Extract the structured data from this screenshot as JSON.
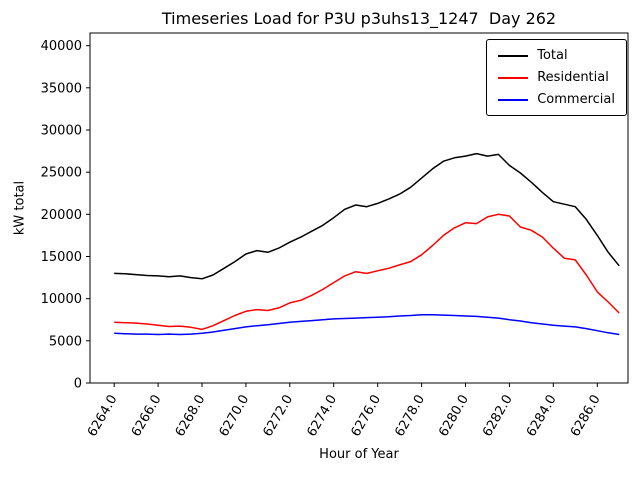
{
  "chart_data": {
    "type": "line",
    "title": "Timeseries Load for P3U p3uhs13_1247  Day 262",
    "xlabel": "Hour of Year",
    "ylabel": "kW total",
    "xlim": [
      6262.9,
      6287.4
    ],
    "ylim": [
      0,
      41500
    ],
    "grid": false,
    "legend_position": "upper right",
    "background": "#ffffff",
    "x": [
      6264,
      6264.5,
      6265,
      6265.5,
      6266,
      6266.5,
      6267,
      6267.5,
      6268,
      6268.5,
      6269,
      6269.5,
      6270,
      6270.5,
      6271,
      6271.5,
      6272,
      6272.5,
      6273,
      6273.5,
      6274,
      6274.5,
      6275,
      6275.5,
      6276,
      6276.5,
      6277,
      6277.5,
      6278,
      6278.5,
      6279,
      6279.5,
      6280,
      6280.5,
      6281,
      6281.5,
      6282,
      6282.5,
      6283,
      6283.5,
      6284,
      6284.5,
      6285,
      6285.5,
      6286,
      6286.5,
      6287
    ],
    "series": [
      {
        "name": "Total",
        "color": "#000000",
        "values": [
          13000,
          12950,
          12850,
          12750,
          12700,
          12600,
          12700,
          12500,
          12350,
          12800,
          13600,
          14400,
          15300,
          15700,
          15500,
          16000,
          16700,
          17300,
          18000,
          18700,
          19600,
          20600,
          21100,
          20900,
          21300,
          21800,
          22400,
          23200,
          24300,
          25400,
          26300,
          26700,
          26900,
          27200,
          26900,
          27100,
          25800,
          24900,
          23800,
          22600,
          21500,
          21200,
          20900,
          19400,
          17500,
          15500,
          13900
        ]
      },
      {
        "name": "Residential",
        "color": "#ff0000",
        "values": [
          7200,
          7150,
          7100,
          7000,
          6850,
          6700,
          6750,
          6600,
          6350,
          6800,
          7400,
          8000,
          8500,
          8700,
          8600,
          8900,
          9500,
          9800,
          10400,
          11100,
          11900,
          12700,
          13200,
          13000,
          13300,
          13600,
          14000,
          14400,
          15200,
          16300,
          17500,
          18400,
          19000,
          18900,
          19700,
          20000,
          19800,
          18500,
          18100,
          17300,
          16000,
          14800,
          14600,
          12800,
          10800,
          9600,
          8300
        ]
      },
      {
        "name": "Commercial",
        "color": "#0000ff",
        "values": [
          5900,
          5850,
          5800,
          5800,
          5750,
          5800,
          5750,
          5800,
          5900,
          6050,
          6250,
          6450,
          6650,
          6800,
          6900,
          7050,
          7200,
          7300,
          7400,
          7500,
          7600,
          7650,
          7700,
          7750,
          7800,
          7850,
          7950,
          8000,
          8100,
          8100,
          8050,
          8000,
          7950,
          7900,
          7800,
          7700,
          7500,
          7350,
          7150,
          7000,
          6850,
          6750,
          6650,
          6450,
          6200,
          5950,
          5750
        ]
      }
    ],
    "xticks": {
      "values": [
        6264,
        6266,
        6268,
        6270,
        6272,
        6274,
        6276,
        6278,
        6280,
        6282,
        6284,
        6286
      ],
      "labels": [
        "6264.0",
        "6266.0",
        "6268.0",
        "6270.0",
        "6272.0",
        "6274.0",
        "6276.0",
        "6278.0",
        "6280.0",
        "6282.0",
        "6284.0",
        "6286.0"
      ]
    },
    "yticks": {
      "values": [
        0,
        5000,
        10000,
        15000,
        20000,
        25000,
        30000,
        35000,
        40000
      ],
      "labels": [
        "0",
        "5000",
        "10000",
        "15000",
        "20000",
        "25000",
        "30000",
        "35000",
        "40000"
      ]
    }
  }
}
